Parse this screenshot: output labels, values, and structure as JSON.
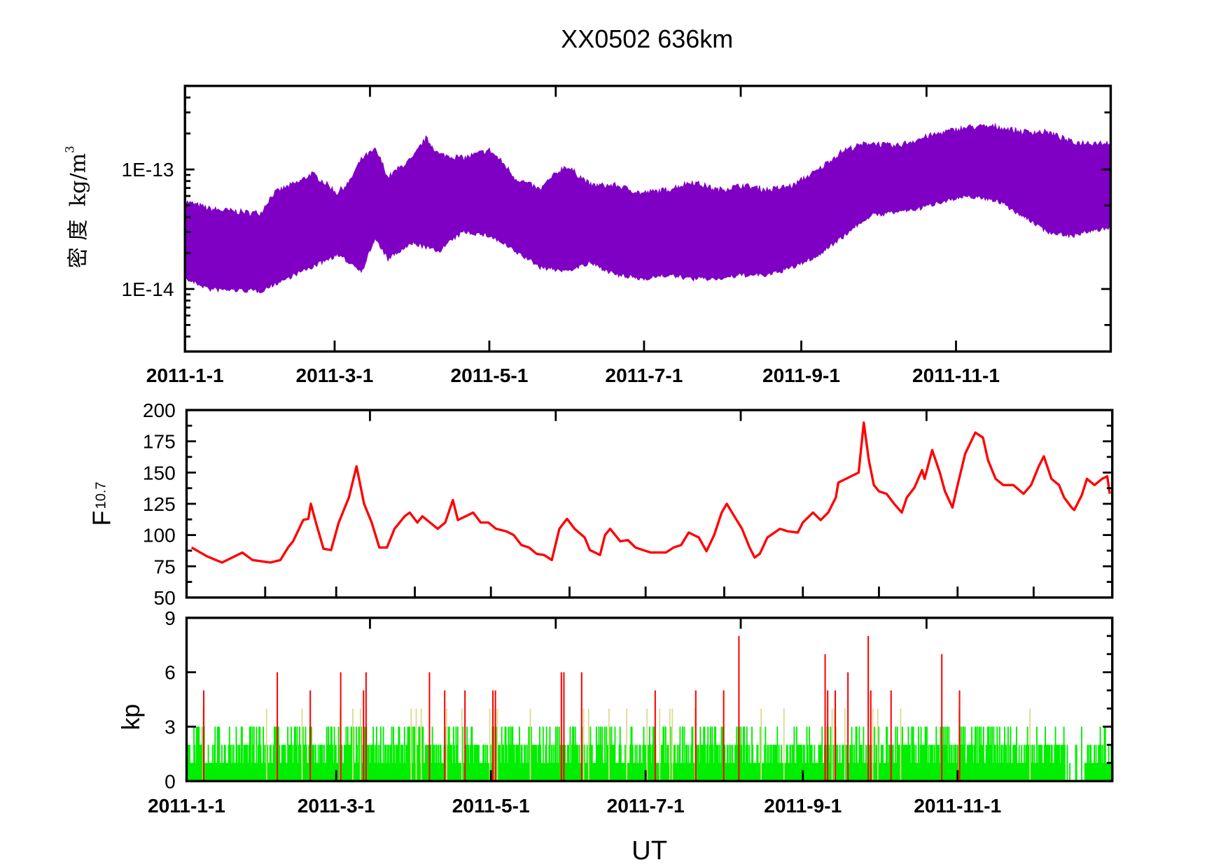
{
  "title": "XX0502  636km",
  "xlabel": "UT",
  "chart_data": [
    {
      "type": "area",
      "panel": "density",
      "ylabel_chars": "密 度",
      "ylabel_unit": "kg/m",
      "ylabel_sup": "3",
      "yscale": "log",
      "ylim": [
        3e-15,
        5e-13
      ],
      "ytick_labels": [
        "1E-13",
        "1E-14"
      ],
      "yticks": [
        1e-13,
        1e-14
      ],
      "xlim": [
        "2011-01-01",
        "2012-01-01"
      ],
      "xtick_labels": [
        "2011-1-1",
        "2011-3-1",
        "2011-5-1",
        "2011-7-1",
        "2011-9-1",
        "2011-11-1"
      ],
      "xticks": [
        "2011-01-01",
        "2011-03-01",
        "2011-05-01",
        "2011-07-01",
        "2011-09-01",
        "2011-11-01"
      ],
      "color": "#7f00c4",
      "upper_envelope": [
        [
          "2011-01-01",
          5.2e-14
        ],
        [
          "2011-01-11",
          4.5e-14
        ],
        [
          "2011-01-26",
          4.2e-14
        ],
        [
          "2011-01-31",
          4.2e-14
        ],
        [
          "2011-02-05",
          6.1e-14
        ],
        [
          "2011-02-15",
          7.6e-14
        ],
        [
          "2011-02-20",
          8.9e-14
        ],
        [
          "2011-03-02",
          6.1e-14
        ],
        [
          "2011-03-07",
          7.6e-14
        ],
        [
          "2011-03-12",
          1.2e-13
        ],
        [
          "2011-03-17",
          1.4e-13
        ],
        [
          "2011-03-22",
          8.2e-14
        ],
        [
          "2011-04-01",
          1.2e-13
        ],
        [
          "2011-04-06",
          1.75e-13
        ],
        [
          "2011-04-11",
          1.29e-13
        ],
        [
          "2011-04-21",
          1.2e-13
        ],
        [
          "2011-05-01",
          1.4e-13
        ],
        [
          "2011-05-11",
          8.2e-14
        ],
        [
          "2011-05-21",
          6.5e-14
        ],
        [
          "2011-05-31",
          1.03e-13
        ],
        [
          "2011-06-10",
          7.1e-14
        ],
        [
          "2011-06-20",
          7.1e-14
        ],
        [
          "2011-06-30",
          6.1e-14
        ],
        [
          "2011-07-10",
          6.5e-14
        ],
        [
          "2011-07-20",
          7.6e-14
        ],
        [
          "2011-07-30",
          6.5e-14
        ],
        [
          "2011-08-09",
          7.1e-14
        ],
        [
          "2011-08-19",
          6.5e-14
        ],
        [
          "2011-08-29",
          7.1e-14
        ],
        [
          "2011-09-08",
          9.6e-14
        ],
        [
          "2011-09-18",
          1.4e-13
        ],
        [
          "2011-09-28",
          1.62e-13
        ],
        [
          "2011-10-08",
          1.5e-13
        ],
        [
          "2011-10-18",
          1.75e-13
        ],
        [
          "2011-10-28",
          2e-13
        ],
        [
          "2011-11-07",
          2.2e-13
        ],
        [
          "2011-11-17",
          2.2e-13
        ],
        [
          "2011-11-27",
          2e-13
        ],
        [
          "2011-12-07",
          1.98e-13
        ],
        [
          "2011-12-17",
          1.62e-13
        ],
        [
          "2011-12-31",
          1.62e-13
        ]
      ],
      "lower_envelope": [
        [
          "2011-01-01",
          1.24e-14
        ],
        [
          "2011-01-11",
          1.01e-14
        ],
        [
          "2011-01-31",
          9.8e-15
        ],
        [
          "2011-02-10",
          1.24e-14
        ],
        [
          "2011-02-20",
          1.55e-14
        ],
        [
          "2011-03-02",
          1.95e-14
        ],
        [
          "2011-03-12",
          1.44e-14
        ],
        [
          "2011-03-17",
          2.64e-14
        ],
        [
          "2011-03-22",
          1.8e-14
        ],
        [
          "2011-04-01",
          2.45e-14
        ],
        [
          "2011-04-11",
          2.1e-14
        ],
        [
          "2011-04-21",
          3.07e-14
        ],
        [
          "2011-05-01",
          2.84e-14
        ],
        [
          "2011-05-11",
          2.1e-14
        ],
        [
          "2011-05-21",
          1.55e-14
        ],
        [
          "2011-05-31",
          1.44e-14
        ],
        [
          "2011-06-10",
          1.67e-14
        ],
        [
          "2011-06-20",
          1.33e-14
        ],
        [
          "2011-06-30",
          1.24e-14
        ],
        [
          "2011-07-10",
          1.33e-14
        ],
        [
          "2011-07-20",
          1.24e-14
        ],
        [
          "2011-07-30",
          1.24e-14
        ],
        [
          "2011-08-09",
          1.33e-14
        ],
        [
          "2011-08-19",
          1.33e-14
        ],
        [
          "2011-08-29",
          1.55e-14
        ],
        [
          "2011-09-08",
          1.95e-14
        ],
        [
          "2011-09-18",
          2.84e-14
        ],
        [
          "2011-09-28",
          4.15e-14
        ],
        [
          "2011-10-08",
          4.48e-14
        ],
        [
          "2011-10-18",
          4.83e-14
        ],
        [
          "2011-10-28",
          5.62e-14
        ],
        [
          "2011-11-07",
          6.06e-14
        ],
        [
          "2011-11-17",
          5.62e-14
        ],
        [
          "2011-11-27",
          4.15e-14
        ],
        [
          "2011-12-07",
          3.07e-14
        ],
        [
          "2011-12-17",
          2.84e-14
        ],
        [
          "2011-12-31",
          3.31e-14
        ]
      ]
    },
    {
      "type": "line",
      "panel": "f107",
      "ylabel": "F",
      "ylabel_sub": "10.7",
      "ylim": [
        50,
        200
      ],
      "ytick_labels": [
        "200",
        "175",
        "150",
        "125",
        "100",
        "75",
        "50"
      ],
      "yticks": [
        200,
        175,
        150,
        125,
        100,
        75,
        50
      ],
      "xlim": [
        "2011-01-01",
        "2012-01-01"
      ],
      "color": "#ff0000",
      "points": [
        [
          "2011-01-03",
          90
        ],
        [
          "2011-01-09",
          83
        ],
        [
          "2011-01-15",
          78
        ],
        [
          "2011-01-23",
          86
        ],
        [
          "2011-01-27",
          80
        ],
        [
          "2011-02-03",
          78
        ],
        [
          "2011-02-07",
          80
        ],
        [
          "2011-02-10",
          90
        ],
        [
          "2011-02-12",
          95
        ],
        [
          "2011-02-16",
          112
        ],
        [
          "2011-02-18",
          113
        ],
        [
          "2011-02-19",
          125
        ],
        [
          "2011-02-21",
          110
        ],
        [
          "2011-02-24",
          89
        ],
        [
          "2011-02-27",
          88
        ],
        [
          "2011-03-02",
          110
        ],
        [
          "2011-03-06",
          130
        ],
        [
          "2011-03-09",
          155
        ],
        [
          "2011-03-12",
          125
        ],
        [
          "2011-03-15",
          110
        ],
        [
          "2011-03-18",
          90
        ],
        [
          "2011-03-21",
          90
        ],
        [
          "2011-03-24",
          105
        ],
        [
          "2011-03-28",
          115
        ],
        [
          "2011-03-30",
          118
        ],
        [
          "2011-04-02",
          110
        ],
        [
          "2011-04-04",
          115
        ],
        [
          "2011-04-07",
          110
        ],
        [
          "2011-04-10",
          105
        ],
        [
          "2011-04-13",
          110
        ],
        [
          "2011-04-16",
          128
        ],
        [
          "2011-04-18",
          112
        ],
        [
          "2011-04-21",
          115
        ],
        [
          "2011-04-24",
          118
        ],
        [
          "2011-04-27",
          110
        ],
        [
          "2011-04-30",
          110
        ],
        [
          "2011-05-03",
          105
        ],
        [
          "2011-05-07",
          103
        ],
        [
          "2011-05-10",
          100
        ],
        [
          "2011-05-13",
          92
        ],
        [
          "2011-05-16",
          90
        ],
        [
          "2011-05-19",
          85
        ],
        [
          "2011-05-22",
          84
        ],
        [
          "2011-05-25",
          80
        ],
        [
          "2011-05-28",
          105
        ],
        [
          "2011-05-31",
          113
        ],
        [
          "2011-06-03",
          105
        ],
        [
          "2011-06-07",
          98
        ],
        [
          "2011-06-09",
          88
        ],
        [
          "2011-06-13",
          84
        ],
        [
          "2011-06-15",
          100
        ],
        [
          "2011-06-17",
          105
        ],
        [
          "2011-06-21",
          95
        ],
        [
          "2011-06-24",
          96
        ],
        [
          "2011-06-27",
          90
        ],
        [
          "2011-06-30",
          88
        ],
        [
          "2011-07-03",
          86
        ],
        [
          "2011-07-06",
          86
        ],
        [
          "2011-07-09",
          86
        ],
        [
          "2011-07-12",
          90
        ],
        [
          "2011-07-15",
          92
        ],
        [
          "2011-07-18",
          102
        ],
        [
          "2011-07-22",
          98
        ],
        [
          "2011-07-25",
          87
        ],
        [
          "2011-07-28",
          100
        ],
        [
          "2011-07-31",
          118
        ],
        [
          "2011-08-02",
          125
        ],
        [
          "2011-08-05",
          115
        ],
        [
          "2011-08-08",
          105
        ],
        [
          "2011-08-11",
          90
        ],
        [
          "2011-08-13",
          82
        ],
        [
          "2011-08-15",
          85
        ],
        [
          "2011-08-18",
          98
        ],
        [
          "2011-08-23",
          105
        ],
        [
          "2011-08-26",
          103
        ],
        [
          "2011-08-30",
          102
        ],
        [
          "2011-09-01",
          110
        ],
        [
          "2011-09-05",
          118
        ],
        [
          "2011-09-08",
          112
        ],
        [
          "2011-09-11",
          118
        ],
        [
          "2011-09-14",
          130
        ],
        [
          "2011-09-15",
          142
        ],
        [
          "2011-09-18",
          145
        ],
        [
          "2011-09-21",
          148
        ],
        [
          "2011-09-23",
          150
        ],
        [
          "2011-09-25",
          190
        ],
        [
          "2011-09-27",
          160
        ],
        [
          "2011-09-29",
          140
        ],
        [
          "2011-10-01",
          135
        ],
        [
          "2011-10-04",
          133
        ],
        [
          "2011-10-07",
          125
        ],
        [
          "2011-10-10",
          118
        ],
        [
          "2011-10-12",
          130
        ],
        [
          "2011-10-15",
          138
        ],
        [
          "2011-10-18",
          152
        ],
        [
          "2011-10-19",
          145
        ],
        [
          "2011-10-22",
          168
        ],
        [
          "2011-10-25",
          150
        ],
        [
          "2011-10-27",
          135
        ],
        [
          "2011-10-30",
          122
        ],
        [
          "2011-11-01",
          140
        ],
        [
          "2011-11-04",
          165
        ],
        [
          "2011-11-08",
          182
        ],
        [
          "2011-11-11",
          178
        ],
        [
          "2011-11-13",
          160
        ],
        [
          "2011-11-16",
          145
        ],
        [
          "2011-11-19",
          140
        ],
        [
          "2011-11-23",
          140
        ],
        [
          "2011-11-27",
          133
        ],
        [
          "2011-11-30",
          140
        ],
        [
          "2011-12-03",
          155
        ],
        [
          "2011-12-05",
          163
        ],
        [
          "2011-12-08",
          145
        ],
        [
          "2011-12-11",
          140
        ],
        [
          "2011-12-13",
          130
        ],
        [
          "2011-12-16",
          122
        ],
        [
          "2011-12-17",
          120
        ],
        [
          "2011-12-20",
          132
        ],
        [
          "2011-12-22",
          145
        ],
        [
          "2011-12-25",
          140
        ],
        [
          "2011-12-28",
          145
        ],
        [
          "2011-12-30",
          147
        ],
        [
          "2011-12-31",
          133
        ]
      ]
    },
    {
      "type": "bar",
      "panel": "kp",
      "ylabel": "kp",
      "ylim": [
        0,
        9
      ],
      "ytick_labels": [
        "9",
        "6",
        "3",
        "0"
      ],
      "yticks": [
        9,
        6,
        3,
        0
      ],
      "xlim": [
        "2011-01-01",
        "2012-01-01"
      ],
      "xtick_labels": [
        "2011-1-1",
        "2011-3-1",
        "2011-5-1",
        "2011-7-1",
        "2011-9-1",
        "2011-11-1"
      ],
      "xticks": [
        "2011-01-01",
        "2011-03-01",
        "2011-05-01",
        "2011-07-01",
        "2011-09-01",
        "2011-11-01"
      ],
      "colors": {
        "quiet": "#00ee00",
        "active": "#e0d890",
        "storm": "#ff0000"
      },
      "storm_events": [
        [
          "2011-01-07",
          5
        ],
        [
          "2011-02-05",
          6
        ],
        [
          "2011-02-18",
          5
        ],
        [
          "2011-03-02",
          6
        ],
        [
          "2011-03-11",
          5
        ],
        [
          "2011-03-12",
          6
        ],
        [
          "2011-04-06",
          6
        ],
        [
          "2011-04-12",
          5
        ],
        [
          "2011-04-20",
          5
        ],
        [
          "2011-05-01",
          5
        ],
        [
          "2011-05-02",
          5
        ],
        [
          "2011-05-28",
          6
        ],
        [
          "2011-05-29",
          6
        ],
        [
          "2011-06-05",
          6
        ],
        [
          "2011-07-04",
          5
        ],
        [
          "2011-07-20",
          5
        ],
        [
          "2011-07-31",
          5
        ],
        [
          "2011-08-06",
          8
        ],
        [
          "2011-09-09",
          7
        ],
        [
          "2011-09-10",
          5
        ],
        [
          "2011-09-13",
          5
        ],
        [
          "2011-09-18",
          6
        ],
        [
          "2011-09-26",
          8
        ],
        [
          "2011-09-27",
          5
        ],
        [
          "2011-10-05",
          5
        ],
        [
          "2011-10-25",
          7
        ],
        [
          "2011-11-01",
          5
        ]
      ],
      "active_events": [
        [
          "2011-01-07",
          4
        ],
        [
          "2011-02-01",
          4
        ],
        [
          "2011-02-15",
          4
        ],
        [
          "2011-03-02",
          4
        ],
        [
          "2011-03-07",
          4
        ],
        [
          "2011-03-10",
          4
        ],
        [
          "2011-03-30",
          4
        ],
        [
          "2011-04-01",
          4
        ],
        [
          "2011-04-03",
          4
        ],
        [
          "2011-04-13",
          4
        ],
        [
          "2011-04-19",
          4
        ],
        [
          "2011-04-30",
          4
        ],
        [
          "2011-05-02",
          4
        ],
        [
          "2011-05-03",
          4
        ],
        [
          "2011-05-16",
          4
        ],
        [
          "2011-06-06",
          4
        ],
        [
          "2011-06-08",
          4
        ],
        [
          "2011-06-16",
          4
        ],
        [
          "2011-06-23",
          4
        ],
        [
          "2011-07-01",
          4
        ],
        [
          "2011-07-06",
          4
        ],
        [
          "2011-07-10",
          4
        ],
        [
          "2011-07-11",
          4
        ],
        [
          "2011-07-20",
          4
        ],
        [
          "2011-08-15",
          4
        ],
        [
          "2011-08-24",
          4
        ],
        [
          "2011-09-12",
          4
        ],
        [
          "2011-09-13",
          4
        ],
        [
          "2011-09-17",
          4
        ],
        [
          "2011-09-28",
          4
        ],
        [
          "2011-09-30",
          4
        ],
        [
          "2011-10-09",
          4
        ],
        [
          "2011-11-01",
          4
        ],
        [
          "2011-11-29",
          4
        ]
      ]
    }
  ]
}
